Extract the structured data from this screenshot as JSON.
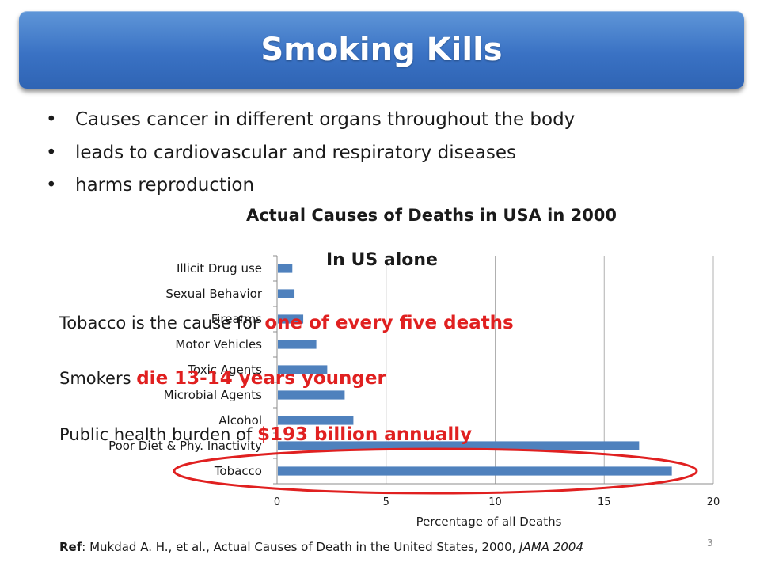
{
  "slide": {
    "title": "Smoking Kills",
    "bullets": [
      "Causes cancer in different organs throughout the body",
      "leads to cardiovascular and respiratory diseases",
      "harms reproduction"
    ],
    "overlay": {
      "heading": "In US alone",
      "line1_prefix": "Tobacco is the cause for ",
      "line1_highlight": "one of every five deaths",
      "line2_prefix": "Smokers ",
      "line2_highlight": "die 13-14 years younger",
      "line3_prefix": "Public health burden of ",
      "line3_highlight": "$193 billion annually"
    },
    "reference": {
      "label": "Ref",
      "text": ": Mukdad A. H., et al., Actual Causes of Death in the United States, 2000, ",
      "journal": "JAMA 2004"
    },
    "page_number": "3",
    "colors": {
      "title_bar": "#3a72c4",
      "bar": "#4f81bd",
      "highlight": "#e02020",
      "circle": "#e02020"
    }
  },
  "chart_data": {
    "type": "bar",
    "orientation": "horizontal",
    "title": "Actual Causes of Deaths in USA in 2000",
    "xlabel": "Percentage of all Deaths",
    "categories": [
      "Tobacco",
      "Poor Diet & Phy. Inactivity",
      "Alcohol",
      "Microbial Agents",
      "Toxic Agents",
      "Motor Vehicles",
      "Firearms",
      "Sexual Behavior",
      "Illicit Drug use"
    ],
    "values": [
      18.1,
      16.6,
      3.5,
      3.1,
      2.3,
      1.8,
      1.2,
      0.8,
      0.7
    ],
    "xlim": [
      0,
      20
    ],
    "xticks": [
      0,
      5,
      10,
      15,
      20
    ],
    "grid": "vertical",
    "legend": "none",
    "highlighted_category": "Tobacco"
  }
}
